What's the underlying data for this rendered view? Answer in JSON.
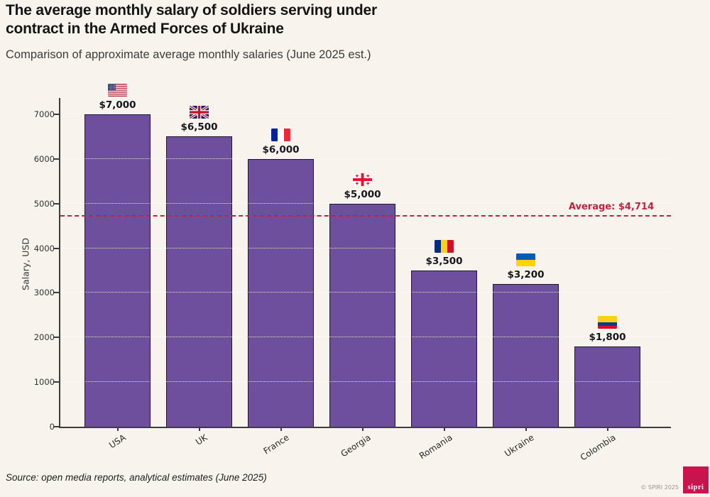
{
  "header": {
    "title_line1": "The average monthly salary of soldiers serving under",
    "title_line2": "contract in the Armed Forces of Ukraine",
    "subtitle": "Comparison of approximate average monthly salaries (June 2025 est.)"
  },
  "chart_data": {
    "type": "bar",
    "categories": [
      "USA",
      "UK",
      "France",
      "Georgia",
      "Romania",
      "Ukraine",
      "Colombia"
    ],
    "values": [
      7000,
      6500,
      6000,
      5000,
      3500,
      3200,
      1800
    ],
    "value_labels": [
      "$7,000",
      "$6,500",
      "$6,000",
      "$5,000",
      "$3,500",
      "$3,200",
      "$1,800"
    ],
    "flags": [
      "usa-flag-icon",
      "uk-flag-icon",
      "france-flag-icon",
      "georgia-flag-icon",
      "romania-flag-icon",
      "ukraine-flag-icon",
      "colombia-flag-icon"
    ],
    "ylabel": "Salary, USD",
    "yticks": [
      0,
      1000,
      2000,
      3000,
      4000,
      5000,
      6000,
      7000
    ],
    "ylim": [
      0,
      7360
    ],
    "grid": "horizontal white dotted lines at 1000 intervals",
    "legend": "none",
    "average": {
      "value": 4714,
      "label": "Average: $4,714"
    },
    "bar_color": "#6e4f9e",
    "bar_border_color": "#221733",
    "average_color": "#c2223a",
    "background_color": "#f8f4ed"
  },
  "footer": {
    "source": "Source: open media reports, analytical estimates (June 2025)",
    "credit": "© SPIRI 2025",
    "logo_text": "sipri"
  }
}
